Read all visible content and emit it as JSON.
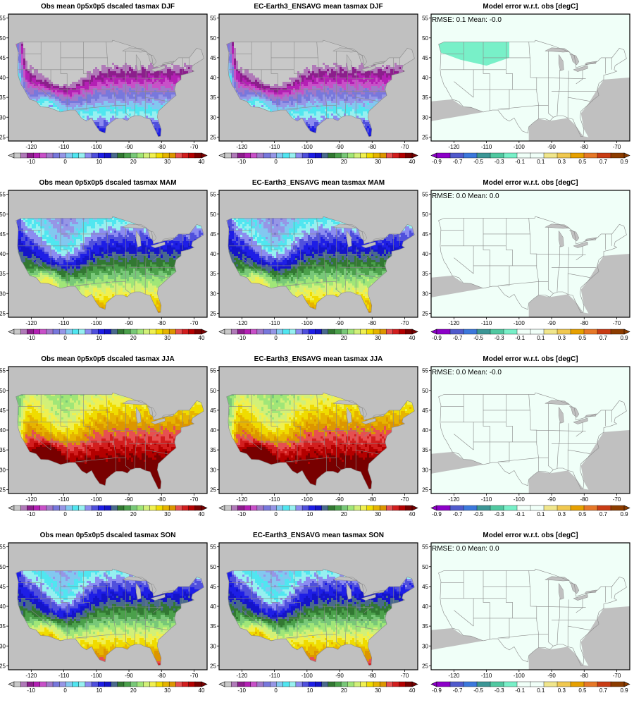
{
  "figure": {
    "rows": [
      {
        "season": "DJF",
        "panels": [
          {
            "title": "Obs mean 0p5x0p5 dscaled tasmax DJF",
            "kind": "clim"
          },
          {
            "title": "EC-Earth3_ENSAVG mean tasmax DJF",
            "kind": "clim"
          },
          {
            "title": "Model error w.r.t. obs [degC]",
            "kind": "error",
            "stats": "RMSE: 0.1   Mean: -0.0"
          }
        ]
      },
      {
        "season": "MAM",
        "panels": [
          {
            "title": "Obs mean 0p5x0p5 dscaled tasmax MAM",
            "kind": "clim"
          },
          {
            "title": "EC-Earth3_ENSAVG mean tasmax MAM",
            "kind": "clim"
          },
          {
            "title": "Model error w.r.t. obs [degC]",
            "kind": "error",
            "stats": "RMSE: 0.0   Mean: 0.0"
          }
        ]
      },
      {
        "season": "JJA",
        "panels": [
          {
            "title": "Obs mean 0p5x0p5 dscaled tasmax JJA",
            "kind": "clim"
          },
          {
            "title": "EC-Earth3_ENSAVG mean tasmax JJA",
            "kind": "clim"
          },
          {
            "title": "Model error w.r.t. obs [degC]",
            "kind": "error",
            "stats": "RMSE: 0.0   Mean: -0.0"
          }
        ]
      },
      {
        "season": "SON",
        "panels": [
          {
            "title": "Obs mean 0p5x0p5 dscaled tasmax SON",
            "kind": "clim"
          },
          {
            "title": "EC-Earth3_ENSAVG mean tasmax SON",
            "kind": "clim"
          },
          {
            "title": "Model error w.r.t. obs [degC]",
            "kind": "error",
            "stats": "RMSE: 0.0   Mean: 0.0"
          }
        ]
      }
    ],
    "axes": {
      "lon_ticks": [
        -120,
        -110,
        -100,
        -90,
        -80,
        -70
      ],
      "lat_ticks": [
        25,
        30,
        35,
        40,
        45,
        50,
        55
      ],
      "lon_range": [
        -127,
        -66
      ],
      "lat_range": [
        24,
        56
      ]
    },
    "clim_colorbar": {
      "labels": [
        "-10",
        "0",
        "10",
        "20",
        "30",
        "40"
      ],
      "label_values": [
        -10,
        0,
        10,
        20,
        30,
        40
      ],
      "range": [
        -15,
        40
      ],
      "colors": [
        "#c8c8c8",
        "#b07ab8",
        "#8c1e8c",
        "#b420b4",
        "#c850c8",
        "#a078c8",
        "#7878dc",
        "#9696e6",
        "#82c8f0",
        "#50e6f0",
        "#96f0f0",
        "#8c8cf0",
        "#5050dc",
        "#1e1ee6",
        "#1414c8",
        "#4a6a8c",
        "#327832",
        "#4ba04b",
        "#78c878",
        "#a0e678",
        "#d2f078",
        "#f0f050",
        "#f0dc00",
        "#e6b400",
        "#dc9600",
        "#e65050",
        "#d21e1e",
        "#b40000",
        "#780000"
      ]
    },
    "error_colorbar": {
      "labels": [
        "-0.9",
        "-0.7",
        "-0.5",
        "-0.3",
        "-0.1",
        "0.1",
        "0.3",
        "0.5",
        "0.7",
        "0.9"
      ],
      "label_values": [
        -0.9,
        -0.7,
        -0.5,
        -0.3,
        -0.1,
        0.1,
        0.3,
        0.5,
        0.7,
        0.9
      ],
      "range": [
        -0.9,
        0.9
      ],
      "colors": [
        "#8c00c8",
        "#505acc",
        "#3c78dc",
        "#3c9696",
        "#50c8a0",
        "#78f0c8",
        "#f0fff8",
        "#f0fff8",
        "#f0e68c",
        "#f0c850",
        "#e6a000",
        "#e67828",
        "#c83c14",
        "#8c3c00"
      ]
    },
    "colors": {
      "land_mask": "#c0c0c0",
      "ocean_fill": "#c0c0c0",
      "frame": "#000000",
      "borders": "#888888",
      "error_background": "#f0fff8",
      "error_highlight": "#78f0c8"
    }
  }
}
